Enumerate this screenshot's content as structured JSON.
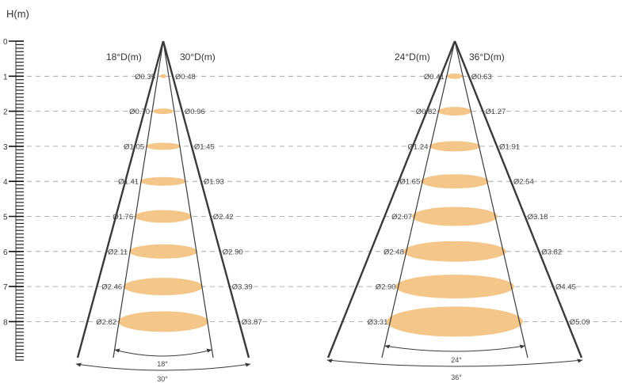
{
  "axis": {
    "label": "H(m)",
    "ticks": [
      "0",
      "1",
      "2",
      "3",
      "4",
      "5",
      "6",
      "7",
      "8"
    ]
  },
  "colors": {
    "spot": "#f5c68a",
    "line": "#3a3a3a",
    "dash": "#9a9a9a"
  },
  "cones": [
    {
      "inner_header": "18°D(m)",
      "outer_header": "30°D(m)",
      "inner_angle": "18°",
      "outer_angle": "30°",
      "inner_diameters": [
        "Ø0.35",
        "Ø0.70",
        "Ø1.05",
        "Ø1.41",
        "Ø1.76",
        "Ø2.11",
        "Ø2.46",
        "Ø2.82"
      ],
      "outer_diameters": [
        "Ø0.48",
        "Ø0.96",
        "Ø1.45",
        "Ø1.93",
        "Ø2.42",
        "Ø2.90",
        "Ø3.39",
        "Ø3.87"
      ]
    },
    {
      "inner_header": "24°D(m)",
      "outer_header": "36°D(m)",
      "inner_angle": "24°",
      "outer_angle": "36°",
      "inner_diameters": [
        "Ø0.41",
        "Ø0.82",
        "Ø1.24",
        "Ø1.65",
        "Ø2.07",
        "Ø2.48",
        "Ø2.90",
        "Ø3.31"
      ],
      "outer_diameters": [
        "Ø0.63",
        "Ø1.27",
        "Ø1.91",
        "Ø2.54",
        "Ø3.18",
        "Ø3.82",
        "Ø4.45",
        "Ø5.09"
      ]
    }
  ]
}
